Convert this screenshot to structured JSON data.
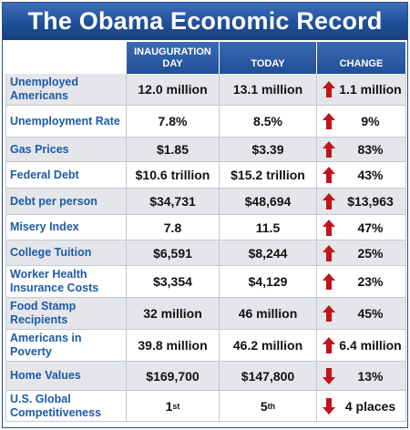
{
  "title": "The Obama Economic Record",
  "headers": {
    "inauguration": "INAUGURATION DAY",
    "today": "TODAY",
    "change": "CHANGE"
  },
  "colors": {
    "header_blue": "#224f96",
    "label_blue": "#1e5aa8",
    "arrow_red": "#c0141c",
    "row_gray": "#e4e6ea"
  },
  "rows": [
    {
      "label": "Unemployed Americans",
      "inauguration": "12.0 million",
      "today": "13.1 million",
      "change": "1.1 million",
      "direction": "up",
      "icon": "up-arrow-icon"
    },
    {
      "label": "Unemployment Rate",
      "inauguration": "7.8%",
      "today": "8.5%",
      "change": "9%",
      "direction": "up",
      "icon": "up-arrow-icon"
    },
    {
      "label": "Gas Prices",
      "inauguration": "$1.85",
      "today": "$3.39",
      "change": "83%",
      "direction": "up",
      "icon": "up-arrow-icon"
    },
    {
      "label": "Federal Debt",
      "inauguration": "$10.6 trillion",
      "today": "$15.2 trillion",
      "change": "43%",
      "direction": "up",
      "icon": "up-arrow-icon"
    },
    {
      "label": "Debt per person",
      "inauguration": "$34,731",
      "today": "$48,694",
      "change": "$13,963",
      "direction": "up",
      "icon": "up-arrow-icon"
    },
    {
      "label": "Misery Index",
      "inauguration": "7.8",
      "today": "11.5",
      "change": "47%",
      "direction": "up",
      "icon": "up-arrow-icon"
    },
    {
      "label": "College Tuition",
      "inauguration": "$6,591",
      "today": "$8,244",
      "change": "25%",
      "direction": "up",
      "icon": "up-arrow-icon"
    },
    {
      "label": "Worker Health Insurance Costs",
      "inauguration": "$3,354",
      "today": "$4,129",
      "change": "23%",
      "direction": "up",
      "icon": "up-arrow-icon"
    },
    {
      "label": "Food Stamp Recipients",
      "inauguration": "32 million",
      "today": "46 million",
      "change": "45%",
      "direction": "up",
      "icon": "up-arrow-icon"
    },
    {
      "label": "Americans in Poverty",
      "inauguration": "39.8 million",
      "today": "46.2 million",
      "change": "6.4 million",
      "direction": "up",
      "icon": "up-arrow-icon"
    },
    {
      "label": "Home Values",
      "inauguration": "$169,700",
      "today": "$147,800",
      "change": "13%",
      "direction": "down",
      "icon": "down-arrow-icon"
    },
    {
      "label": "U.S. Global Competitiveness",
      "inauguration": "1",
      "inauguration_sup": "st",
      "today": "5",
      "today_sup": "th",
      "change": "4 places",
      "direction": "down",
      "icon": "down-arrow-icon"
    }
  ]
}
